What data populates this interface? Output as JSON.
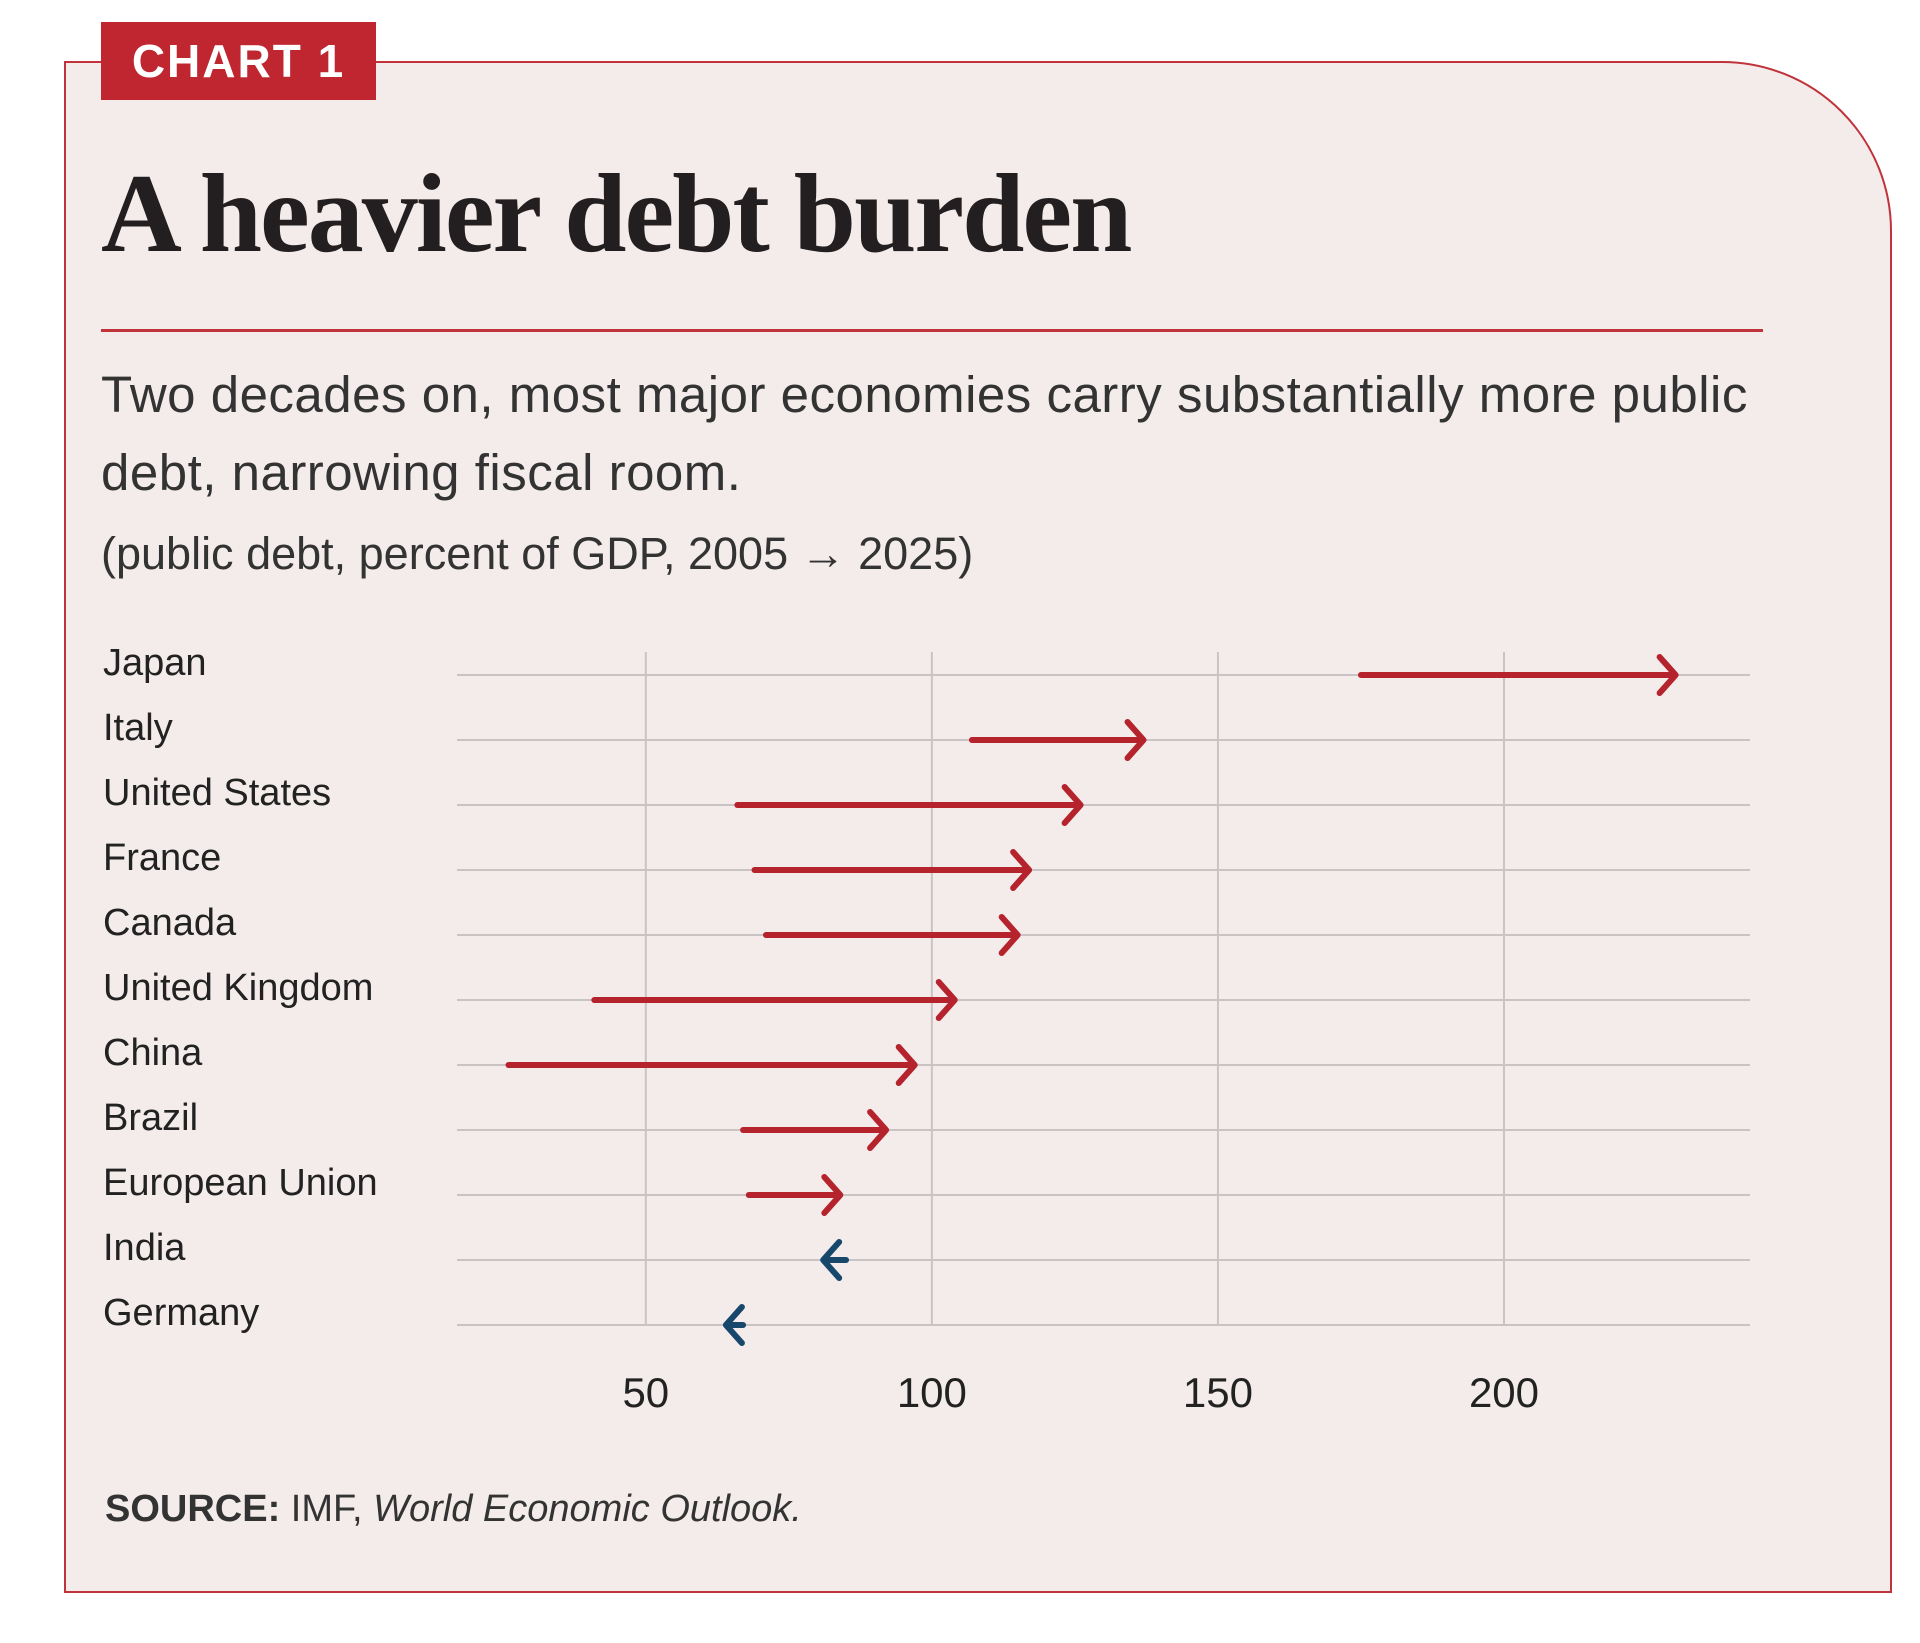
{
  "tag": "CHART 1",
  "chart_data": {
    "type": "arrow",
    "title": "A heavier debt burden",
    "subtitle": "Two decades on, most major economies carry substantially more public debt, narrowing fiscal room.",
    "units": "(public debt, percent of GDP, 2005 → 2025)",
    "categories": [
      "Japan",
      "Italy",
      "United States",
      "France",
      "Canada",
      "United Kingdom",
      "China",
      "Brazil",
      "European Union",
      "India",
      "Germany"
    ],
    "start_values": [
      175,
      107,
      66,
      69,
      71,
      41,
      26,
      67,
      68,
      85,
      67
    ],
    "end_values": [
      230,
      137,
      126,
      117,
      115,
      104,
      97,
      92,
      84,
      81,
      64
    ],
    "colors": {
      "increase": "#b5232d",
      "decrease": "#17476b"
    },
    "xlim": [
      17,
      243
    ],
    "xticks": [
      50,
      100,
      150,
      200
    ],
    "grid": true
  },
  "source": {
    "label": "SOURCE:",
    "text": "IMF,",
    "publication": "World Economic Outlook."
  }
}
